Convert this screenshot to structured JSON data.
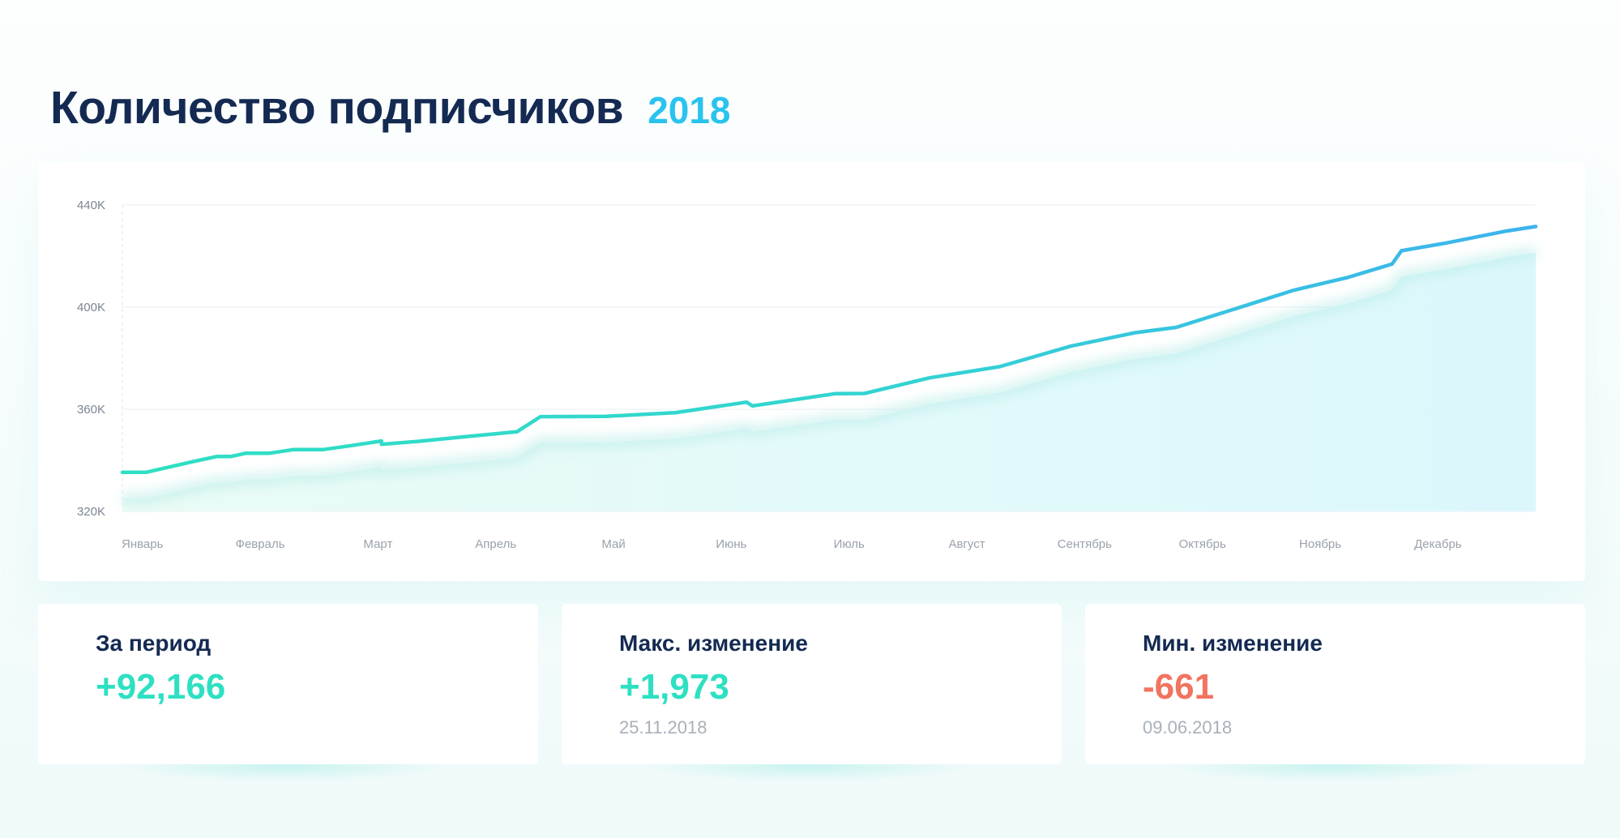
{
  "header": {
    "title": "Количество подписчиков",
    "year": "2018"
  },
  "chart_data": {
    "type": "area",
    "title": "Количество подписчиков",
    "xlabel": "",
    "ylabel": "",
    "y_ticks": [
      "440K",
      "400K",
      "360K",
      "320K"
    ],
    "ylim": [
      320000,
      440000
    ],
    "grid": true,
    "categories": [
      "Январь",
      "Февраль",
      "Март",
      "Апрель",
      "Май",
      "Июнь",
      "Июль",
      "Август",
      "Сентябрь",
      "Октябрь",
      "Ноябрь",
      "Декабрь"
    ],
    "x_range": [
      0,
      12
    ],
    "series": [
      {
        "values": [
          [
            0.0,
            335300
          ],
          [
            0.2,
            335300
          ],
          [
            0.6,
            339500
          ],
          [
            0.8,
            341500
          ],
          [
            0.92,
            341500
          ],
          [
            1.05,
            342800
          ],
          [
            1.25,
            342800
          ],
          [
            1.45,
            344200
          ],
          [
            1.7,
            344200
          ],
          [
            1.95,
            345800
          ],
          [
            2.2,
            347600
          ],
          [
            2.2,
            346300
          ],
          [
            2.5,
            347400
          ],
          [
            2.9,
            349200
          ],
          [
            3.35,
            351200
          ],
          [
            3.55,
            357100
          ],
          [
            4.1,
            357200
          ],
          [
            4.7,
            358700
          ],
          [
            5.3,
            362800
          ],
          [
            5.35,
            361300
          ],
          [
            6.05,
            366100
          ],
          [
            6.3,
            366200
          ],
          [
            6.85,
            372300
          ],
          [
            7.45,
            376700
          ],
          [
            8.05,
            384700
          ],
          [
            8.6,
            390000
          ],
          [
            8.95,
            392100
          ],
          [
            9.5,
            400100
          ],
          [
            9.95,
            406700
          ],
          [
            10.4,
            411600
          ],
          [
            10.78,
            416900
          ],
          [
            10.86,
            422100
          ],
          [
            11.25,
            425200
          ],
          [
            11.75,
            429800
          ],
          [
            12.0,
            431600
          ]
        ]
      }
    ]
  },
  "stats": [
    {
      "title": "За период",
      "value": "+92,166",
      "date": "",
      "color": "#2ee0c2"
    },
    {
      "title": "Макс. изменение",
      "value": "+1,973",
      "date": "25.11.2018",
      "color": "#2ee0c2"
    },
    {
      "title": "Мин. изменение",
      "value": "-661",
      "date": "09.06.2018",
      "color": "#f2735f"
    }
  ],
  "colors": {
    "accent_start": "#2ee0c2",
    "accent_end": "#3cb3ee",
    "title": "#142a52",
    "year": "#29c3ee"
  }
}
